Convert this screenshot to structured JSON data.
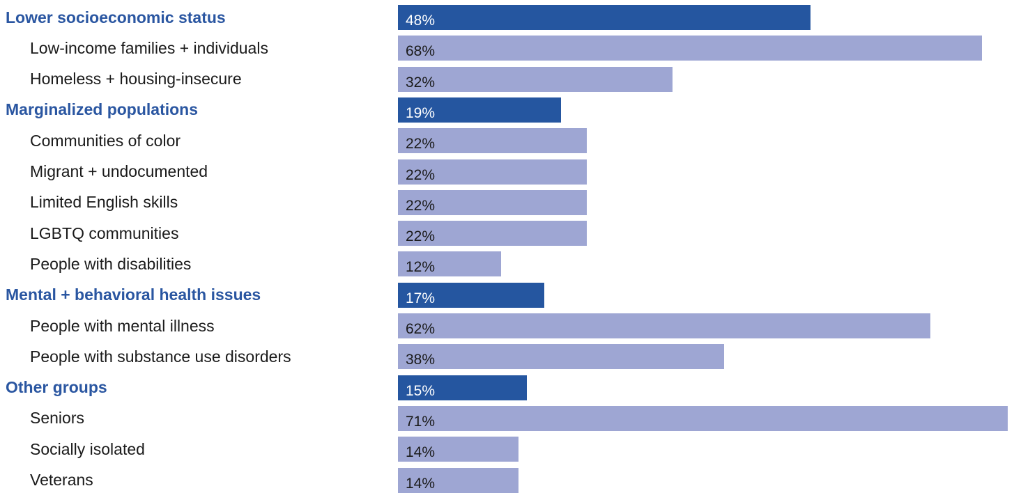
{
  "colors": {
    "group_bar": "#2556a0",
    "sub_bar": "#9ea6d3",
    "group_text": "#2a56a1",
    "group_bar_label": "#ffffff",
    "sub_bar_label": "#1a1a1a"
  },
  "chart_data": {
    "type": "bar",
    "orientation": "horizontal",
    "title": "",
    "xlabel": "",
    "ylabel": "",
    "xlim": [
      0,
      71
    ],
    "grid": false,
    "legend": "none",
    "rows": [
      {
        "label": "Lower socioeconomic status",
        "value": 48,
        "value_label": "48%",
        "kind": "group"
      },
      {
        "label": "Low-income families + individuals",
        "value": 68,
        "value_label": "68%",
        "kind": "sub"
      },
      {
        "label": "Homeless + housing-insecure",
        "value": 32,
        "value_label": "32%",
        "kind": "sub"
      },
      {
        "label": "Marginalized populations",
        "value": 19,
        "value_label": "19%",
        "kind": "group"
      },
      {
        "label": "Communities of color",
        "value": 22,
        "value_label": "22%",
        "kind": "sub"
      },
      {
        "label": "Migrant + undocumented",
        "value": 22,
        "value_label": "22%",
        "kind": "sub"
      },
      {
        "label": "Limited English skills",
        "value": 22,
        "value_label": "22%",
        "kind": "sub"
      },
      {
        "label": "LGBTQ communities",
        "value": 22,
        "value_label": "22%",
        "kind": "sub"
      },
      {
        "label": "People with disabilities",
        "value": 12,
        "value_label": "12%",
        "kind": "sub"
      },
      {
        "label": "Mental + behavioral health issues",
        "value": 17,
        "value_label": "17%",
        "kind": "group"
      },
      {
        "label": "People with mental illness",
        "value": 62,
        "value_label": "62%",
        "kind": "sub"
      },
      {
        "label": "People with substance use disorders",
        "value": 38,
        "value_label": "38%",
        "kind": "sub"
      },
      {
        "label": "Other groups",
        "value": 15,
        "value_label": "15%",
        "kind": "group"
      },
      {
        "label": "Seniors",
        "value": 71,
        "value_label": "71%",
        "kind": "sub"
      },
      {
        "label": "Socially isolated",
        "value": 14,
        "value_label": "14%",
        "kind": "sub"
      },
      {
        "label": "Veterans",
        "value": 14,
        "value_label": "14%",
        "kind": "sub"
      }
    ]
  }
}
